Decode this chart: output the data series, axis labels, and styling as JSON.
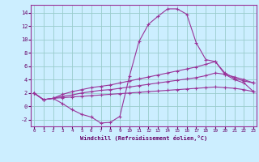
{
  "bg_color": "#cceeff",
  "line_color": "#993399",
  "grid_color": "#99cccc",
  "xlabel": "Windchill (Refroidissement éolien,°C)",
  "xlabel_color": "#660066",
  "tick_color": "#660066",
  "ylabel_ticks": [
    -2,
    0,
    2,
    4,
    6,
    8,
    10,
    12,
    14
  ],
  "xlabel_ticks": [
    0,
    1,
    2,
    3,
    4,
    5,
    6,
    7,
    8,
    9,
    10,
    11,
    12,
    13,
    14,
    15,
    16,
    17,
    18,
    19,
    20,
    21,
    22,
    23
  ],
  "xlim": [
    -0.3,
    23.3
  ],
  "ylim": [
    -3.0,
    15.2
  ],
  "line1_x": [
    0,
    1,
    2,
    3,
    4,
    5,
    6,
    7,
    8,
    9,
    10,
    11,
    12,
    13,
    14,
    15,
    16,
    17,
    18,
    19,
    20,
    21,
    22,
    23
  ],
  "line1_y": [
    2.0,
    1.0,
    1.2,
    0.4,
    -0.5,
    -1.2,
    -1.6,
    -2.5,
    -2.4,
    -1.5,
    4.5,
    9.7,
    12.3,
    13.5,
    14.6,
    14.6,
    13.8,
    9.5,
    7.0,
    6.7,
    4.8,
    4.0,
    3.5,
    2.2
  ],
  "line2_x": [
    0,
    1,
    2,
    3,
    4,
    5,
    6,
    7,
    8,
    9,
    10,
    11,
    12,
    13,
    14,
    15,
    16,
    17,
    18,
    19,
    20,
    21,
    22,
    23
  ],
  "line2_y": [
    2.0,
    1.0,
    1.2,
    1.8,
    2.2,
    2.5,
    2.8,
    3.0,
    3.2,
    3.5,
    3.8,
    4.1,
    4.4,
    4.7,
    5.0,
    5.3,
    5.6,
    5.9,
    6.3,
    6.7,
    5.0,
    4.2,
    3.8,
    3.5
  ],
  "line3_x": [
    0,
    1,
    2,
    3,
    4,
    5,
    6,
    7,
    8,
    9,
    10,
    11,
    12,
    13,
    14,
    15,
    16,
    17,
    18,
    19,
    20,
    21,
    22,
    23
  ],
  "line3_y": [
    2.0,
    1.0,
    1.2,
    1.5,
    1.7,
    2.0,
    2.2,
    2.4,
    2.5,
    2.7,
    2.9,
    3.1,
    3.3,
    3.5,
    3.7,
    3.9,
    4.1,
    4.3,
    4.6,
    5.0,
    4.8,
    4.4,
    4.0,
    3.5
  ],
  "line4_x": [
    0,
    1,
    2,
    3,
    4,
    5,
    6,
    7,
    8,
    9,
    10,
    11,
    12,
    13,
    14,
    15,
    16,
    17,
    18,
    19,
    20,
    21,
    22,
    23
  ],
  "line4_y": [
    2.0,
    1.0,
    1.2,
    1.3,
    1.4,
    1.5,
    1.6,
    1.7,
    1.8,
    1.9,
    2.0,
    2.1,
    2.2,
    2.3,
    2.4,
    2.5,
    2.6,
    2.7,
    2.8,
    2.9,
    2.8,
    2.7,
    2.5,
    2.2
  ]
}
